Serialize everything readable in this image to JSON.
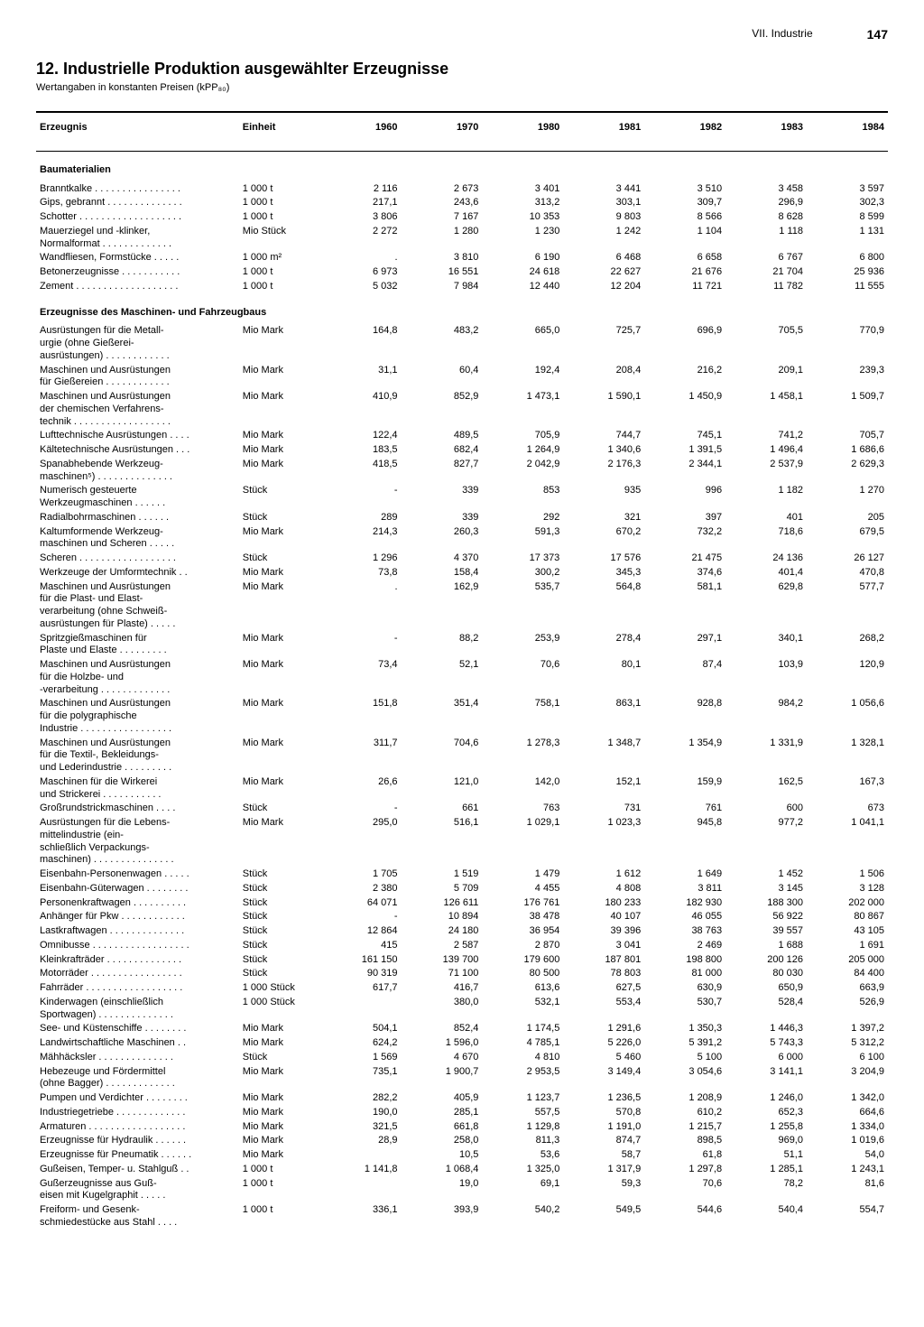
{
  "header": {
    "section": "VII. Industrie",
    "page": "147"
  },
  "title": "12. Industrielle Produktion ausgewählter Erzeugnisse",
  "subtitle": "Wertangaben in konstanten Preisen (kPP₈₀)",
  "columns": {
    "product": "Erzeugnis",
    "unit": "Einheit",
    "years": [
      "1960",
      "1970",
      "1980",
      "1981",
      "1982",
      "1983",
      "1984"
    ]
  },
  "sections": [
    {
      "title": "Baumaterialien",
      "rows": [
        {
          "p": "Branntkalke . . . . . . . . . . . . . . . .",
          "u": "1 000 t",
          "v": [
            "2 116",
            "2 673",
            "3 401",
            "3 441",
            "3 510",
            "3 458",
            "3 597"
          ]
        },
        {
          "p": "Gips, gebrannt . . . . . . . . . . . . . .",
          "u": "1 000 t",
          "v": [
            "217,1",
            "243,6",
            "313,2",
            "303,1",
            "309,7",
            "296,9",
            "302,3"
          ]
        },
        {
          "p": "Schotter . . . . . . . . . . . . . . . . . . .",
          "u": "1 000 t",
          "v": [
            "3 806",
            "7 167",
            "10 353",
            "9 803",
            "8 566",
            "8 628",
            "8 599"
          ]
        },
        {
          "p": "Mauerziegel und -klinker,\n  Normalformat . . . . . . . . . . . . .",
          "u": "Mio Stück",
          "v": [
            "2 272",
            "1 280",
            "1 230",
            "1 242",
            "1 104",
            "1 118",
            "1 131"
          ]
        },
        {
          "p": "Wandfliesen, Formstücke . . . . .",
          "u": "1 000 m²",
          "v": [
            ".",
            "3 810",
            "6 190",
            "6 468",
            "6 658",
            "6 767",
            "6 800"
          ]
        },
        {
          "p": "Betonerzeugnisse . . . . . . . . . . .",
          "u": "1 000 t",
          "v": [
            "6 973",
            "16 551",
            "24 618",
            "22 627",
            "21 676",
            "21 704",
            "25 936"
          ]
        },
        {
          "p": "Zement . . . . . . . . . . . . . . . . . . .",
          "u": "1 000 t",
          "v": [
            "5 032",
            "7 984",
            "12 440",
            "12 204",
            "11 721",
            "11 782",
            "11 555"
          ]
        }
      ]
    },
    {
      "title": "Erzeugnisse des Maschinen- und Fahrzeugbaus",
      "rows": [
        {
          "p": "Ausrüstungen für die Metall-\n  urgie (ohne Gießerei-\n  ausrüstungen) . . . . . . . . . . . .",
          "u": "Mio Mark",
          "v": [
            "164,8",
            "483,2",
            "665,0",
            "725,7",
            "696,9",
            "705,5",
            "770,9"
          ]
        },
        {
          "p": "Maschinen und Ausrüstungen\n  für Gießereien . . . . . . . . . . . .",
          "u": "Mio Mark",
          "v": [
            "31,1",
            "60,4",
            "192,4",
            "208,4",
            "216,2",
            "209,1",
            "239,3"
          ]
        },
        {
          "p": "Maschinen und Ausrüstungen\n  der chemischen Verfahrens-\n  technik . . . . . . . . . . . . . . . . . .",
          "u": "Mio Mark",
          "v": [
            "410,9",
            "852,9",
            "1 473,1",
            "1 590,1",
            "1 450,9",
            "1 458,1",
            "1 509,7"
          ]
        },
        {
          "p": "Lufttechnische Ausrüstungen . . . .",
          "u": "Mio Mark",
          "v": [
            "122,4",
            "489,5",
            "705,9",
            "744,7",
            "745,1",
            "741,2",
            "705,7"
          ]
        },
        {
          "p": "Kältetechnische Ausrüstungen . . .",
          "u": "Mio Mark",
          "v": [
            "183,5",
            "682,4",
            "1 264,9",
            "1 340,6",
            "1 391,5",
            "1 496,4",
            "1 686,6"
          ]
        },
        {
          "p": "Spanabhebende Werkzeug-\n  maschinen⁵) . . . . . . . . . . . . . .",
          "u": "Mio Mark",
          "v": [
            "418,5",
            "827,7",
            "2 042,9",
            "2 176,3",
            "2 344,1",
            "2 537,9",
            "2 629,3"
          ]
        },
        {
          "p": "  Numerisch gesteuerte\n    Werkzeugmaschinen . . . . . .",
          "u": "Stück",
          "v": [
            "-",
            "339",
            "853",
            "935",
            "996",
            "1 182",
            "1 270"
          ]
        },
        {
          "p": "  Radialbohrmaschinen . . . . . .",
          "u": "Stück",
          "v": [
            "289",
            "339",
            "292",
            "321",
            "397",
            "401",
            "205"
          ]
        },
        {
          "p": "Kaltumformende Werkzeug-\n  maschinen und Scheren . . . . .",
          "u": "Mio Mark",
          "v": [
            "214,3",
            "260,3",
            "591,3",
            "670,2",
            "732,2",
            "718,6",
            "679,5"
          ]
        },
        {
          "p": "  Scheren . . . . . . . . . . . . . . . . . .",
          "u": "Stück",
          "v": [
            "1 296",
            "4 370",
            "17 373",
            "17 576",
            "21 475",
            "24 136",
            "26 127"
          ]
        },
        {
          "p": "Werkzeuge der Umformtechnik . .",
          "u": "Mio Mark",
          "v": [
            "73,8",
            "158,4",
            "300,2",
            "345,3",
            "374,6",
            "401,4",
            "470,8"
          ]
        },
        {
          "p": "Maschinen und Ausrüstungen\n  für die Plast- und Elast-\n  verarbeitung (ohne Schweiß-\n  ausrüstungen für Plaste) . . . . .",
          "u": "Mio Mark",
          "v": [
            ".",
            "162,9",
            "535,7",
            "564,8",
            "581,1",
            "629,8",
            "577,7"
          ]
        },
        {
          "p": "  Spritzgießmaschinen für\n    Plaste und Elaste . . . . . . . . .",
          "u": "Mio Mark",
          "v": [
            "-",
            "88,2",
            "253,9",
            "278,4",
            "297,1",
            "340,1",
            "268,2"
          ]
        },
        {
          "p": "Maschinen und Ausrüstungen\n  für die Holzbe- und\n  -verarbeitung . . . . . . . . . . . . .",
          "u": "Mio Mark",
          "v": [
            "73,4",
            "52,1",
            "70,6",
            "80,1",
            "87,4",
            "103,9",
            "120,9"
          ]
        },
        {
          "p": "Maschinen und Ausrüstungen\n  für die polygraphische\n  Industrie . . . . . . . . . . . . . . . . .",
          "u": "Mio Mark",
          "v": [
            "151,8",
            "351,4",
            "758,1",
            "863,1",
            "928,8",
            "984,2",
            "1 056,6"
          ]
        },
        {
          "p": "Maschinen und Ausrüstungen\n  für die Textil-, Bekleidungs-\n  und Lederindustrie . . . . . . . . .",
          "u": "Mio Mark",
          "v": [
            "311,7",
            "704,6",
            "1 278,3",
            "1 348,7",
            "1 354,9",
            "1 331,9",
            "1 328,1"
          ]
        },
        {
          "p": "  Maschinen für die Wirkerei\n    und Strickerei . . . . . . . . . . .",
          "u": "Mio Mark",
          "v": [
            "26,6",
            "121,0",
            "142,0",
            "152,1",
            "159,9",
            "162,5",
            "167,3"
          ]
        },
        {
          "p": "  Großrundstrickmaschinen . . . .",
          "u": "Stück",
          "v": [
            "-",
            "661",
            "763",
            "731",
            "761",
            "600",
            "673"
          ]
        },
        {
          "p": "Ausrüstungen für die Lebens-\n  mittelindustrie (ein-\n  schließlich Verpackungs-\n  maschinen) . . . . . . . . . . . . . . .",
          "u": "Mio Mark",
          "v": [
            "295,0",
            "516,1",
            "1 029,1",
            "1 023,3",
            "945,8",
            "977,2",
            "1 041,1"
          ]
        },
        {
          "p": "Eisenbahn-Personenwagen . . . . .",
          "u": "Stück",
          "v": [
            "1 705",
            "1 519",
            "1 479",
            "1 612",
            "1 649",
            "1 452",
            "1 506"
          ]
        },
        {
          "p": "Eisenbahn-Güterwagen . . . . . . . .",
          "u": "Stück",
          "v": [
            "2 380",
            "5 709",
            "4 455",
            "4 808",
            "3 811",
            "3 145",
            "3 128"
          ]
        },
        {
          "p": "Personenkraftwagen . . . . . . . . . .",
          "u": "Stück",
          "v": [
            "64 071",
            "126 611",
            "176 761",
            "180 233",
            "182 930",
            "188 300",
            "202 000"
          ]
        },
        {
          "p": "Anhänger für Pkw . . . . . . . . . . . .",
          "u": "Stück",
          "v": [
            "-",
            "10 894",
            "38 478",
            "40 107",
            "46 055",
            "56 922",
            "80 867"
          ]
        },
        {
          "p": "Lastkraftwagen . . . . . . . . . . . . . .",
          "u": "Stück",
          "v": [
            "12 864",
            "24 180",
            "36 954",
            "39 396",
            "38 763",
            "39 557",
            "43 105"
          ]
        },
        {
          "p": "Omnibusse . . . . . . . . . . . . . . . . . .",
          "u": "Stück",
          "v": [
            "415",
            "2 587",
            "2 870",
            "3 041",
            "2 469",
            "1 688",
            "1 691"
          ]
        },
        {
          "p": "Kleinkrafträder . . . . . . . . . . . . . .",
          "u": "Stück",
          "v": [
            "161 150",
            "139 700",
            "179 600",
            "187 801",
            "198 800",
            "200 126",
            "205 000"
          ]
        },
        {
          "p": "Motorräder . . . . . . . . . . . . . . . . .",
          "u": "Stück",
          "v": [
            "90 319",
            "71 100",
            "80 500",
            "78 803",
            "81 000",
            "80 030",
            "84 400"
          ]
        },
        {
          "p": "Fahrräder . . . . . . . . . . . . . . . . . .",
          "u": "1 000 Stück",
          "v": [
            "617,7",
            "416,7",
            "613,6",
            "627,5",
            "630,9",
            "650,9",
            "663,9"
          ]
        },
        {
          "p": "Kinderwagen (einschließlich\n  Sportwagen) . . . . . . . . . . . . . .",
          "u": "1 000 Stück",
          "v": [
            "",
            "380,0",
            "532,1",
            "553,4",
            "530,7",
            "528,4",
            "526,9"
          ]
        },
        {
          "p": "See- und Küstenschiffe . . . . . . . .",
          "u": "Mio Mark",
          "v": [
            "504,1",
            "852,4",
            "1 174,5",
            "1 291,6",
            "1 350,3",
            "1 446,3",
            "1 397,2"
          ]
        },
        {
          "p": "Landwirtschaftliche Maschinen . .",
          "u": "Mio Mark",
          "v": [
            "624,2",
            "1 596,0",
            "4 785,1",
            "5 226,0",
            "5 391,2",
            "5 743,3",
            "5 312,2"
          ]
        },
        {
          "p": "  Mähhäcksler . . . . . . . . . . . . . .",
          "u": "Stück",
          "v": [
            "1 569",
            "4 670",
            "4 810",
            "5 460",
            "5 100",
            "6 000",
            "6 100"
          ]
        },
        {
          "p": "Hebezeuge und Fördermittel\n  (ohne Bagger) . . . . . . . . . . . . .",
          "u": "Mio Mark",
          "v": [
            "735,1",
            "1 900,7",
            "2 953,5",
            "3 149,4",
            "3 054,6",
            "3 141,1",
            "3 204,9"
          ]
        },
        {
          "p": "Pumpen und Verdichter . . . . . . . .",
          "u": "Mio Mark",
          "v": [
            "282,2",
            "405,9",
            "1 123,7",
            "1 236,5",
            "1 208,9",
            "1 246,0",
            "1 342,0"
          ]
        },
        {
          "p": "Industriegetriebe . . . . . . . . . . . . .",
          "u": "Mio Mark",
          "v": [
            "190,0",
            "285,1",
            "557,5",
            "570,8",
            "610,2",
            "652,3",
            "664,6"
          ]
        },
        {
          "p": "Armaturen . . . . . . . . . . . . . . . . . .",
          "u": "Mio Mark",
          "v": [
            "321,5",
            "661,8",
            "1 129,8",
            "1 191,0",
            "1 215,7",
            "1 255,8",
            "1 334,0"
          ]
        },
        {
          "p": "Erzeugnisse für Hydraulik . . . . . .",
          "u": "Mio Mark",
          "v": [
            "28,9",
            "258,0",
            "811,3",
            "874,7",
            "898,5",
            "969,0",
            "1 019,6"
          ]
        },
        {
          "p": "Erzeugnisse für Pneumatik . . . . . .",
          "u": "Mio Mark",
          "v": [
            "",
            "10,5",
            "53,6",
            "58,7",
            "61,8",
            "51,1",
            "54,0"
          ]
        },
        {
          "p": "Gußeisen, Temper- u. Stahlguß . .",
          "u": "1 000 t",
          "v": [
            ".",
            "1 141,8",
            "1 068,4",
            "1 325,0",
            "1 317,9",
            "1 297,8",
            "1 285,1",
            "1 243,1"
          ],
          "shift": true
        },
        {
          "p": "  Gußerzeugnisse aus Guß-\n    eisen mit Kugelgraphit . . . . .",
          "u": "1 000 t",
          "v": [
            "",
            "19,0",
            "69,1",
            "59,3",
            "70,6",
            "78,2",
            "81,6"
          ]
        },
        {
          "p": "Freiform- und Gesenk-\n  schmiedestücke aus Stahl . . . .",
          "u": "1 000 t",
          "v": [
            "336,1",
            "393,9",
            "540,2",
            "549,5",
            "544,6",
            "540,4",
            "554,7"
          ]
        }
      ]
    }
  ]
}
